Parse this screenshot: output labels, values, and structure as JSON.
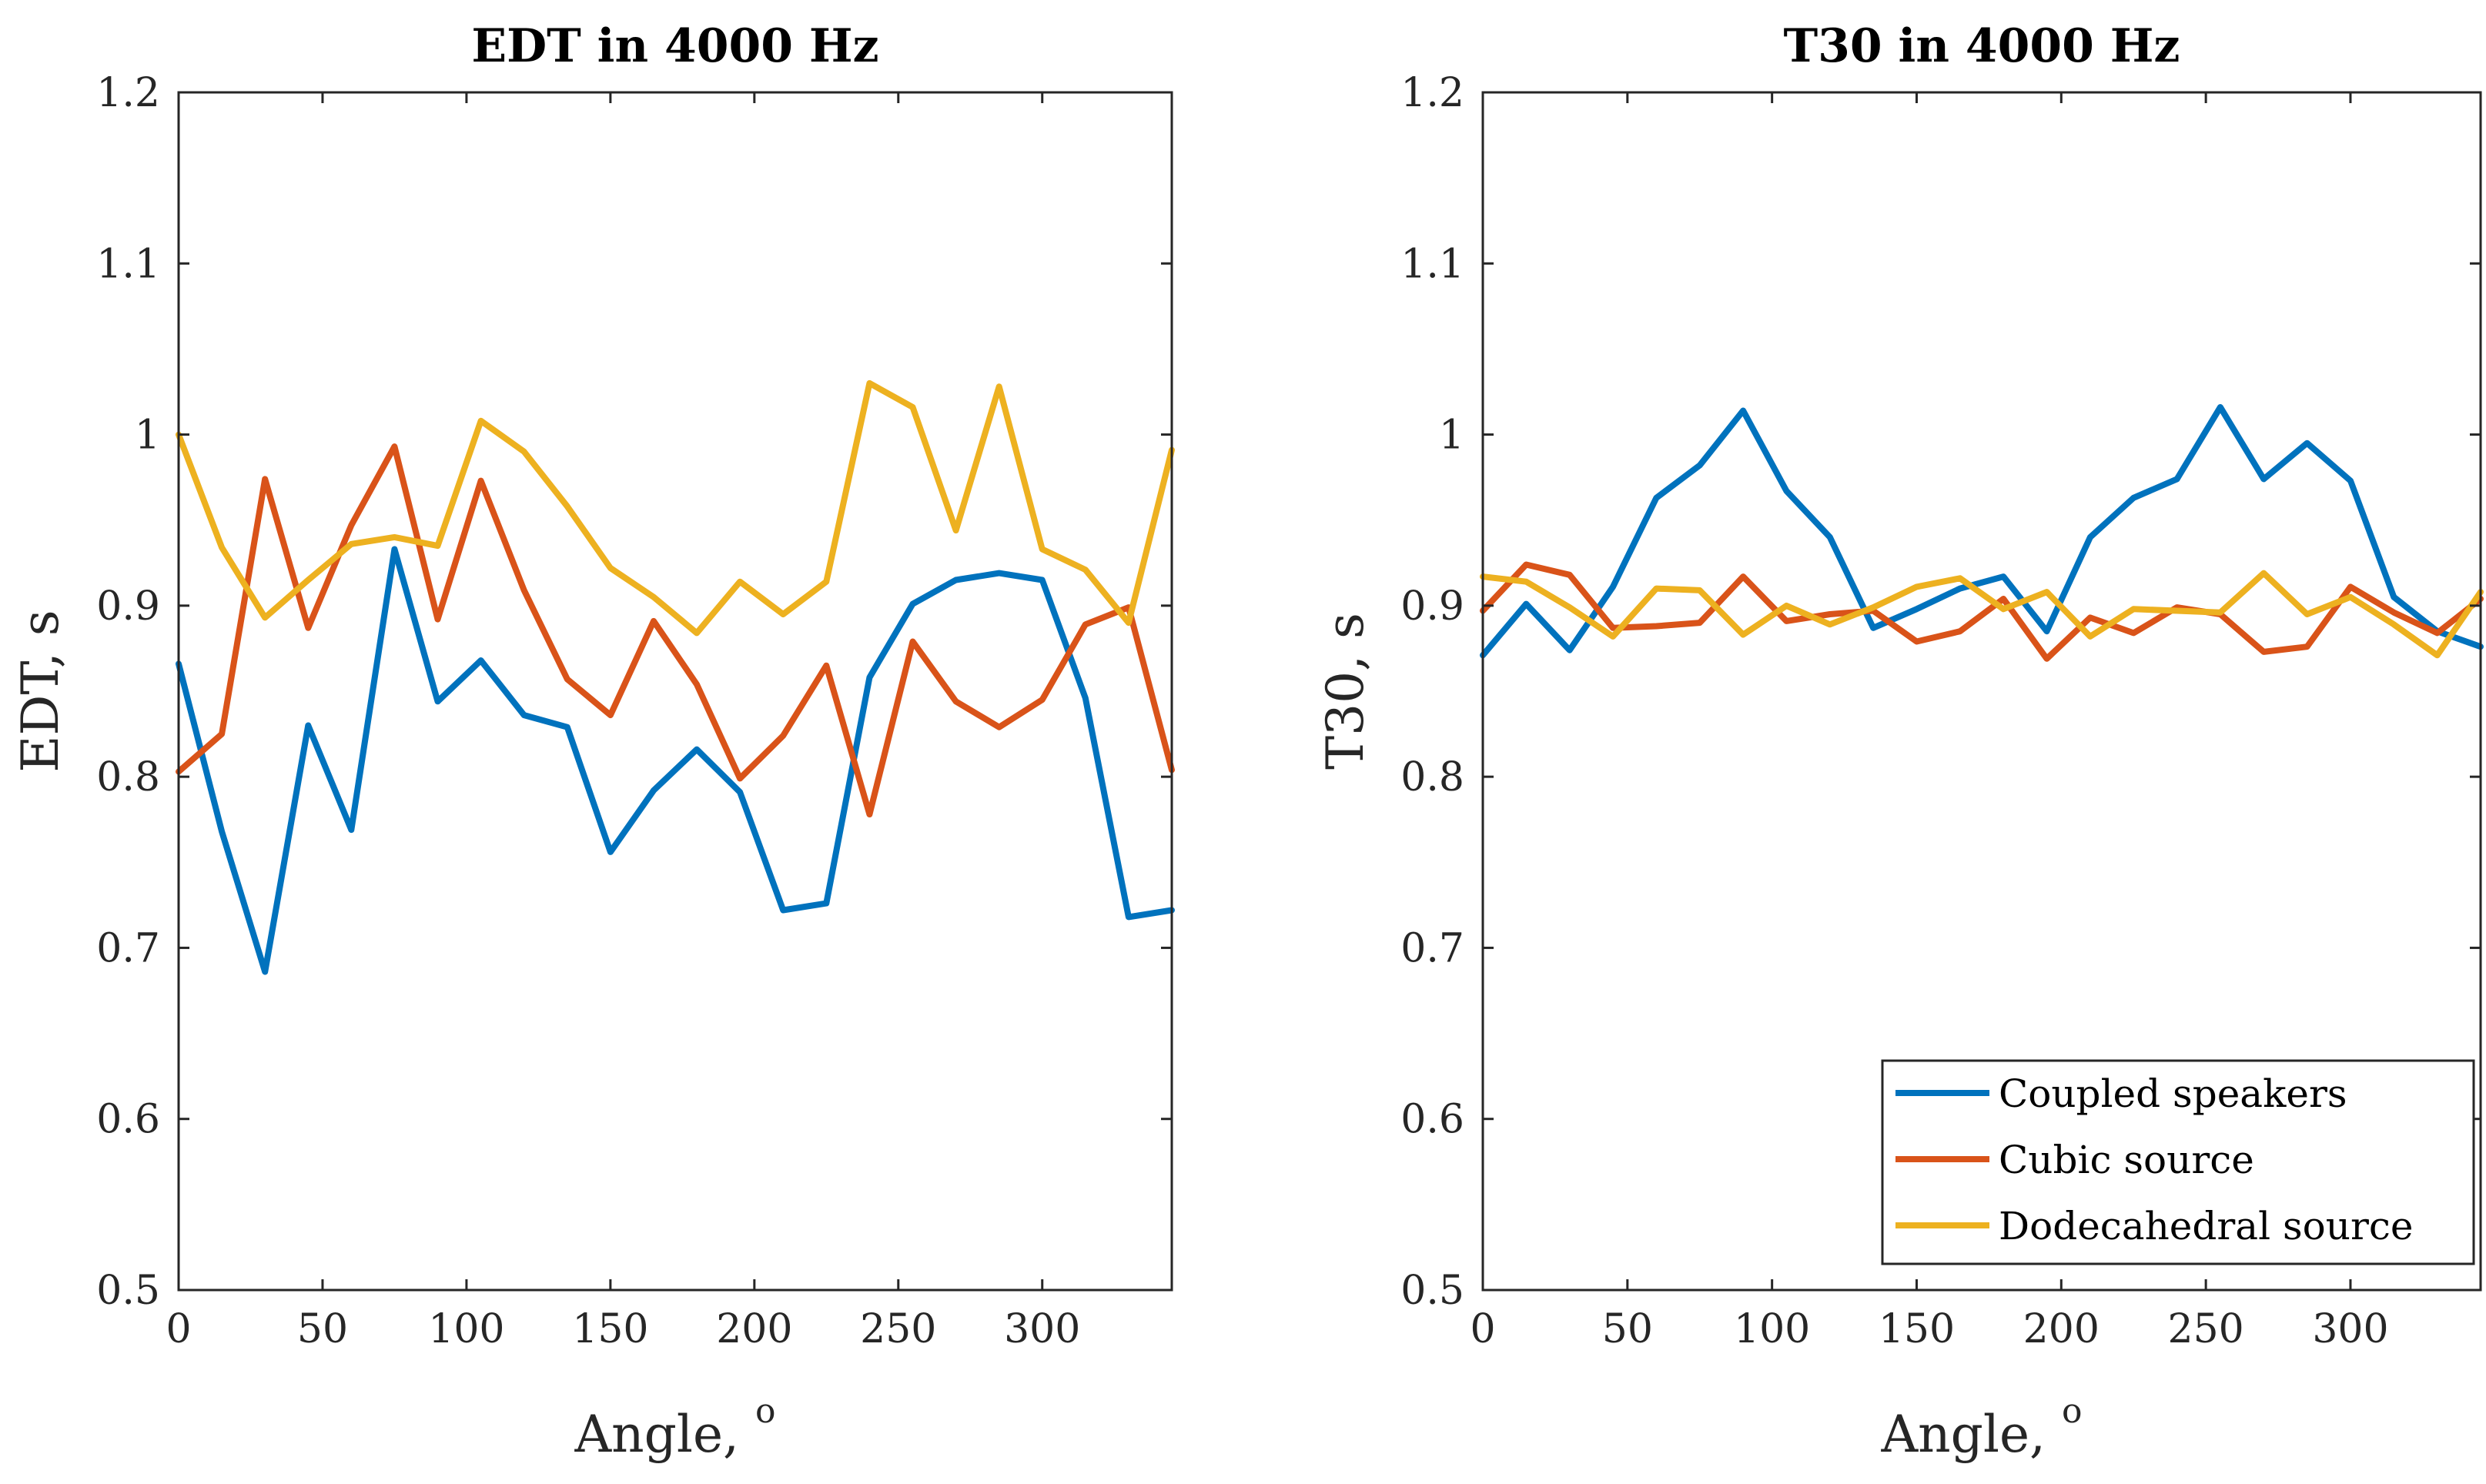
{
  "chart_data": [
    {
      "type": "line",
      "title": "EDT in 4000 Hz",
      "xlabel": "Angle, ",
      "xlabel_sup": "o",
      "ylabel": "EDT, s",
      "xlim": [
        0,
        345
      ],
      "ylim": [
        0.5,
        1.2
      ],
      "xticks": [
        0,
        50,
        100,
        150,
        200,
        250,
        300
      ],
      "xtick_labels": [
        "0",
        "50",
        "100",
        "150",
        "200",
        "250",
        "300"
      ],
      "yticks": [
        0.5,
        0.6,
        0.7,
        0.8,
        0.9,
        1.0,
        1.1,
        1.2
      ],
      "ytick_labels": [
        "0.5",
        "0.6",
        "0.7",
        "0.8",
        "0.9",
        "1",
        "1.1",
        "1.2"
      ],
      "x": [
        0,
        15,
        30,
        45,
        60,
        75,
        90,
        105,
        120,
        135,
        150,
        165,
        180,
        195,
        210,
        225,
        240,
        255,
        270,
        285,
        300,
        315,
        330,
        345
      ],
      "series": [
        {
          "name": "Coupled speakers",
          "color": "#0072BD",
          "values": [
            0.866,
            0.768,
            0.686,
            0.83,
            0.769,
            0.933,
            0.844,
            0.868,
            0.836,
            0.829,
            0.756,
            0.792,
            0.816,
            0.791,
            0.722,
            0.726,
            0.858,
            0.901,
            0.915,
            0.919,
            0.915,
            0.846,
            0.718,
            0.722
          ]
        },
        {
          "name": "Cubic source",
          "color": "#D95319",
          "values": [
            0.803,
            0.825,
            0.974,
            0.887,
            0.947,
            0.993,
            0.892,
            0.973,
            0.909,
            0.857,
            0.836,
            0.891,
            0.854,
            0.799,
            0.824,
            0.865,
            0.778,
            0.879,
            0.844,
            0.829,
            0.845,
            0.889,
            0.899,
            0.804
          ]
        },
        {
          "name": "Dodecahedral source",
          "color": "#EDB120",
          "values": [
            1.0,
            0.934,
            0.893,
            0.915,
            0.936,
            0.94,
            0.935,
            1.008,
            0.99,
            0.958,
            0.922,
            0.905,
            0.884,
            0.914,
            0.895,
            0.914,
            1.03,
            1.016,
            0.944,
            1.028,
            0.933,
            0.921,
            0.89,
            0.991
          ]
        }
      ]
    },
    {
      "type": "line",
      "title": "T30 in 4000 Hz",
      "xlabel": "Angle, ",
      "xlabel_sup": "o",
      "ylabel": "T30, s",
      "xlim": [
        0,
        345
      ],
      "ylim": [
        0.5,
        1.2
      ],
      "xticks": [
        0,
        50,
        100,
        150,
        200,
        250,
        300
      ],
      "xtick_labels": [
        "0",
        "50",
        "100",
        "150",
        "200",
        "250",
        "300"
      ],
      "yticks": [
        0.5,
        0.6,
        0.7,
        0.8,
        0.9,
        1.0,
        1.1,
        1.2
      ],
      "ytick_labels": [
        "0.5",
        "0.6",
        "0.7",
        "0.8",
        "0.9",
        "1",
        "1.1",
        "1.2"
      ],
      "x": [
        0,
        15,
        30,
        45,
        60,
        75,
        90,
        105,
        120,
        135,
        150,
        165,
        180,
        195,
        210,
        225,
        240,
        255,
        270,
        285,
        300,
        315,
        330,
        345
      ],
      "legend": {
        "location": "bottom-right",
        "entries": [
          "Coupled speakers",
          "Cubic source",
          "Dodecahedral source"
        ]
      },
      "series": [
        {
          "name": "Coupled speakers",
          "color": "#0072BD",
          "values": [
            0.871,
            0.901,
            0.874,
            0.911,
            0.963,
            0.982,
            1.014,
            0.967,
            0.94,
            0.887,
            0.898,
            0.91,
            0.917,
            0.885,
            0.94,
            0.963,
            0.974,
            1.016,
            0.974,
            0.995,
            0.973,
            0.905,
            0.885,
            0.876
          ]
        },
        {
          "name": "Cubic source",
          "color": "#D95319",
          "values": [
            0.897,
            0.924,
            0.918,
            0.887,
            0.888,
            0.89,
            0.917,
            0.891,
            0.895,
            0.897,
            0.879,
            0.885,
            0.904,
            0.869,
            0.893,
            0.884,
            0.899,
            0.895,
            0.873,
            0.876,
            0.911,
            0.896,
            0.884,
            0.904
          ]
        },
        {
          "name": "Dodecahedral source",
          "color": "#EDB120",
          "values": [
            0.917,
            0.914,
            0.899,
            0.882,
            0.91,
            0.909,
            0.883,
            0.9,
            0.889,
            0.899,
            0.911,
            0.916,
            0.898,
            0.908,
            0.882,
            0.898,
            0.897,
            0.896,
            0.919,
            0.895,
            0.905,
            0.889,
            0.871,
            0.908
          ]
        }
      ]
    }
  ]
}
